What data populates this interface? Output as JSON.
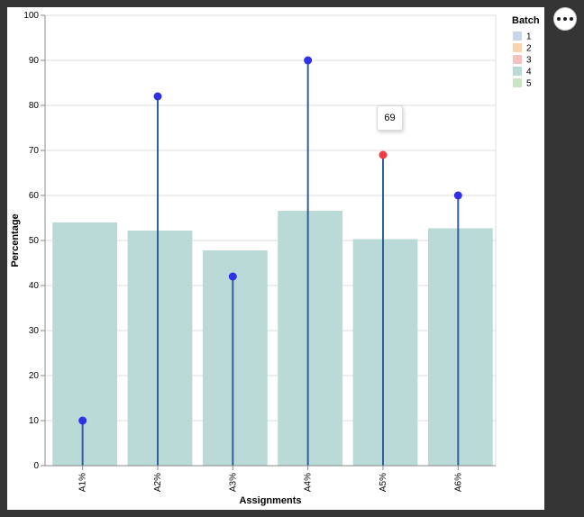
{
  "chart_data": {
    "type": "bar",
    "xlabel": "Assignments",
    "ylabel": "Percentage",
    "ylim": [
      0,
      100
    ],
    "yticks": [
      0,
      10,
      20,
      30,
      40,
      50,
      60,
      70,
      80,
      90,
      100
    ],
    "grid": true,
    "categories": [
      "A1%",
      "A2%",
      "A3%",
      "A4%",
      "A5%",
      "A6%"
    ],
    "series": [
      {
        "name": "4",
        "mark": "bar",
        "color": "#b9dad7",
        "values": [
          54,
          52.2,
          47.8,
          56.6,
          50.3,
          52.7
        ]
      },
      {
        "mark": "lollipop",
        "color": "#3030e8",
        "stem_color": "#2f5f9e",
        "values": [
          10,
          82,
          42,
          90,
          69,
          60
        ]
      }
    ],
    "highlight": {
      "category": "A5%",
      "color": "#ef3b44"
    },
    "legend": {
      "title": "Batch",
      "placement": "top-right",
      "items": [
        {
          "label": "1",
          "color": "#c3d3ea",
          "active": false
        },
        {
          "label": "2",
          "color": "#f9cfa6",
          "active": false
        },
        {
          "label": "3",
          "color": "#f5b9b6",
          "active": false
        },
        {
          "label": "4",
          "color": "#b9dad7",
          "active": true
        },
        {
          "label": "5",
          "color": "#c3e2bd",
          "active": false
        }
      ]
    },
    "tooltip": {
      "text": "69"
    }
  },
  "actions": {
    "icon": "ellipsis-icon"
  }
}
